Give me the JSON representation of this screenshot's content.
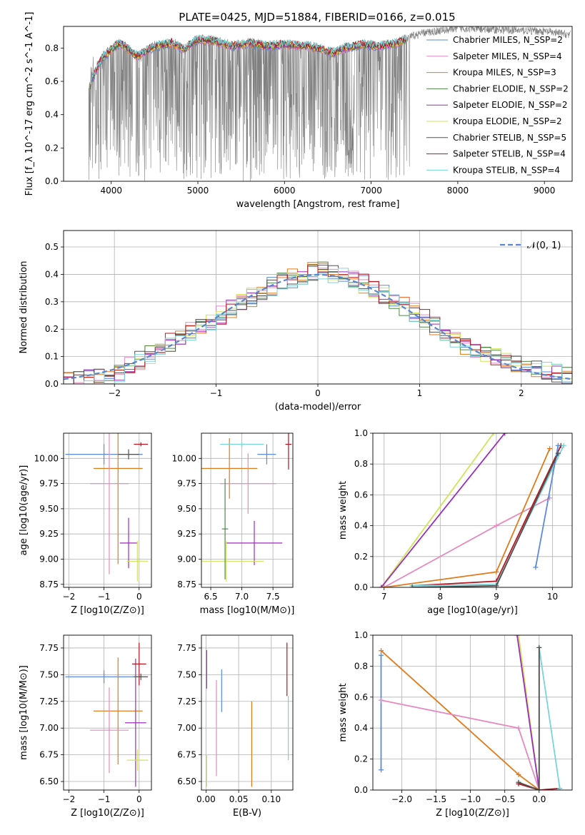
{
  "figure": {
    "title": "PLATE=0425, MJD=51884, FIBERID=0166, z=0.015"
  },
  "colors": {
    "grey": "#808080",
    "blue": "#5b8bd8",
    "pink": "#e689c0",
    "orange": "#e07b1a",
    "green": "#4f8a4a",
    "purple": "#9a2fb9",
    "yellow": "#cfe45a",
    "dark": "#505050",
    "red": "#b5161f",
    "cyan": "#78d4d8",
    "dash": "#5b86cf"
  },
  "chart_data": [
    {
      "id": "spectrum",
      "type": "line",
      "title": "PLATE=0425, MJD=51884, FIBERID=0166, z=0.015",
      "xlabel": "wavelength [Angstrom, rest frame]",
      "ylabel": "Flux [f_λ 10^-17 erg cm^-2 s^-1 A^-1]",
      "xlim": [
        3450,
        9320
      ],
      "ylim": [
        0,
        0.93
      ],
      "xticks": [
        4000,
        5000,
        6000,
        7000,
        8000,
        9000
      ],
      "yticks": [
        0.0,
        0.2,
        0.4,
        0.6,
        0.8
      ],
      "grid": false,
      "legend_position": "top-right",
      "legend": [
        "Chabrier MILES, N_SSP=2",
        "Salpeter MILES, N_SSP=4",
        "Kroupa MILES, N_SSP=3",
        "Chabrier ELODIE, N_SSP=2",
        "Salpeter ELODIE, N_SSP=2",
        "Kroupa ELODIE, N_SSP=2",
        "Chabrier STELIB, N_SSP=5",
        "Salpeter STELIB, N_SSP=4",
        "Kroupa STELIB, N_SSP=4"
      ],
      "data_range_x": [
        3740,
        9300
      ],
      "series": [
        {
          "name": "data",
          "x": [
            3740,
            3800,
            3900,
            4000,
            4100,
            4200,
            4300,
            4500,
            4700,
            4860,
            4900,
            5000,
            5200,
            5400,
            5600,
            5800,
            6000,
            6300,
            6563,
            6700,
            6900,
            7100,
            7300,
            7400,
            7600,
            8000,
            8500,
            9000,
            9300
          ],
          "y": [
            0.58,
            0.66,
            0.76,
            0.8,
            0.84,
            0.8,
            0.76,
            0.82,
            0.84,
            0.8,
            0.83,
            0.86,
            0.85,
            0.82,
            0.84,
            0.82,
            0.83,
            0.82,
            0.78,
            0.81,
            0.83,
            0.82,
            0.84,
            0.86,
            0.89,
            0.92,
            0.91,
            0.9,
            0.88
          ]
        },
        {
          "name": "models",
          "x": [
            3750,
            3800,
            3900,
            4000,
            4100,
            4200,
            4300,
            4500,
            4700,
            4860,
            4900,
            5000,
            5200,
            5400,
            5600,
            5800,
            6000,
            6300,
            6563,
            6700,
            6900,
            7100,
            7300,
            7400
          ],
          "y": [
            0.56,
            0.64,
            0.74,
            0.79,
            0.83,
            0.79,
            0.75,
            0.81,
            0.83,
            0.79,
            0.82,
            0.85,
            0.84,
            0.81,
            0.83,
            0.81,
            0.82,
            0.81,
            0.77,
            0.8,
            0.82,
            0.81,
            0.83,
            0.85
          ]
        }
      ]
    },
    {
      "id": "residuals",
      "type": "line",
      "xlabel": "(data-model)/error",
      "ylabel": "Normed distribution",
      "xlim": [
        -2.5,
        2.5
      ],
      "ylim": [
        0,
        0.56
      ],
      "xticks": [
        -2,
        -1,
        0,
        1,
        2
      ],
      "yticks": [
        0.0,
        0.1,
        0.2,
        0.3,
        0.4,
        0.5
      ],
      "grid": true,
      "legend_position": "top-right",
      "legend": [
        "𝒩(0, 1)"
      ],
      "bin_width": 0.1,
      "series": [
        {
          "name": "normal",
          "function": "gaussian",
          "mu": 0,
          "sigma": 1
        },
        {
          "name": "histogram_base",
          "x": [
            -2.5,
            -2.0,
            -1.5,
            -1.0,
            -0.5,
            0.0,
            0.5,
            1.0,
            1.5,
            2.0,
            2.5
          ],
          "y": [
            0.01,
            0.03,
            0.14,
            0.24,
            0.35,
            0.42,
            0.36,
            0.25,
            0.13,
            0.06,
            0.03
          ]
        }
      ]
    },
    {
      "id": "age_vs_Z",
      "type": "scatter",
      "xlabel": "Z [log10(Z/Z⊙)]",
      "ylabel": "age [log10(age/yr)]",
      "xlim": [
        -2.15,
        0.35
      ],
      "ylim": [
        8.72,
        10.25
      ],
      "xticks": [
        -2,
        -1,
        0
      ],
      "yticks": [
        8.75,
        9.0,
        9.25,
        9.5,
        9.75,
        10.0
      ],
      "grid": true,
      "points": [
        {
          "x": -1.0,
          "xerr": 1.1,
          "y": 10.04,
          "yerr": 0.1,
          "color": "blue"
        },
        {
          "x": -0.6,
          "xerr": 0.7,
          "y": 9.9,
          "yerr": 0.95,
          "color": "orange"
        },
        {
          "x": -0.85,
          "xerr": 0.55,
          "y": 9.75,
          "yerr": 0.9,
          "color": "pink"
        },
        {
          "x": -0.3,
          "xerr": 0.25,
          "y": 9.16,
          "yerr": 0.25,
          "color": "purple"
        },
        {
          "x": -0.05,
          "xerr": 0.3,
          "y": 8.98,
          "yerr": 0.2,
          "color": "yellow"
        },
        {
          "x": 0.05,
          "xerr": 0.2,
          "y": 10.14,
          "yerr": 0.02,
          "color": "red"
        },
        {
          "x": -0.3,
          "xerr": 0.3,
          "y": 10.04,
          "yerr": 0.05,
          "color": "dark"
        }
      ]
    },
    {
      "id": "age_vs_mass",
      "type": "scatter",
      "xlabel": "mass [log10(M/M⊙)]",
      "ylabel": "",
      "xlim": [
        6.35,
        7.82
      ],
      "ylim": [
        8.72,
        10.25
      ],
      "xticks": [
        6.5,
        7.0,
        7.5
      ],
      "yticks": [
        8.75,
        9.0,
        9.25,
        9.5,
        9.75,
        10.0
      ],
      "grid": true,
      "points": [
        {
          "x": 6.8,
          "xerr": 0.45,
          "y": 9.9,
          "yerr": 0.3,
          "color": "orange"
        },
        {
          "x": 7.1,
          "xerr": 0.45,
          "y": 9.75,
          "yerr": 0.3,
          "color": "pink"
        },
        {
          "x": 7.2,
          "xerr": 0.45,
          "y": 9.16,
          "yerr": 0.22,
          "color": "purple"
        },
        {
          "x": 7.4,
          "xerr": 0.15,
          "y": 10.04,
          "yerr": 0.1,
          "color": "blue"
        },
        {
          "x": 6.75,
          "xerr": 0.6,
          "y": 8.98,
          "yerr": 0.2,
          "color": "yellow"
        },
        {
          "x": 7.75,
          "xerr": 0.05,
          "y": 10.14,
          "yerr": 0.25,
          "color": "red"
        },
        {
          "x": 7.0,
          "xerr": 0.35,
          "y": 10.14,
          "yerr": 0.02,
          "color": "cyan"
        },
        {
          "x": 6.73,
          "xerr": 0.05,
          "y": 9.3,
          "yerr": 0.5,
          "color": "green"
        }
      ]
    },
    {
      "id": "massweight_vs_age",
      "type": "line",
      "xlabel": "age [log10(age/yr)]",
      "ylabel": "mass weight",
      "xlim": [
        6.8,
        10.35
      ],
      "ylim": [
        0,
        1.0
      ],
      "xticks": [
        7,
        8,
        9,
        10
      ],
      "yticks": [
        0.0,
        0.2,
        0.4,
        0.6,
        0.8,
        1.0
      ],
      "grid": true,
      "series": [
        {
          "color": "yellow",
          "x": [
            6.95,
            8.95
          ],
          "y": [
            0.0,
            1.0
          ]
        },
        {
          "color": "purple",
          "x": [
            6.95,
            9.15
          ],
          "y": [
            0.0,
            1.0
          ]
        },
        {
          "color": "pink",
          "x": [
            7.0,
            9.0,
            9.95
          ],
          "y": [
            0.0,
            0.4,
            0.58
          ]
        },
        {
          "color": "orange",
          "x": [
            7.0,
            9.0,
            9.95
          ],
          "y": [
            0.0,
            0.1,
            0.9
          ]
        },
        {
          "color": "red",
          "x": [
            7.5,
            9.0,
            10.15
          ],
          "y": [
            0.01,
            0.04,
            0.92
          ]
        },
        {
          "color": "cyan",
          "x": [
            7.5,
            9.0,
            10.2
          ],
          "y": [
            0.01,
            0.02,
            0.92
          ]
        },
        {
          "color": "blue",
          "x": [
            9.7,
            10.1
          ],
          "y": [
            0.13,
            0.92
          ]
        },
        {
          "color": "dark",
          "x": [
            7.5,
            9.0,
            10.1
          ],
          "y": [
            0.0,
            0.01,
            0.87
          ]
        }
      ]
    },
    {
      "id": "mass_vs_Z",
      "type": "scatter",
      "xlabel": "Z [log10(Z/Z⊙)]",
      "ylabel": "mass [log10(M/M⊙)]",
      "xlim": [
        -2.15,
        0.35
      ],
      "ylim": [
        6.42,
        7.87
      ],
      "xticks": [
        -2,
        -1,
        0
      ],
      "yticks": [
        6.5,
        6.75,
        7.0,
        7.25,
        7.5,
        7.75
      ],
      "grid": true,
      "points": [
        {
          "x": -1.0,
          "xerr": 1.1,
          "y": 7.48,
          "yerr": 0.06,
          "color": "blue"
        },
        {
          "x": -0.6,
          "xerr": 0.7,
          "y": 7.16,
          "yerr": 0.5,
          "color": "orange"
        },
        {
          "x": -0.85,
          "xerr": 0.55,
          "y": 6.98,
          "yerr": 0.4,
          "color": "pink"
        },
        {
          "x": -0.1,
          "xerr": 0.3,
          "y": 7.05,
          "yerr": 0.6,
          "color": "purple"
        },
        {
          "x": -0.05,
          "xerr": 0.3,
          "y": 6.7,
          "yerr": 0.1,
          "color": "yellow"
        },
        {
          "x": 0.0,
          "xerr": 0.2,
          "y": 7.6,
          "yerr": 0.2,
          "color": "red"
        },
        {
          "x": 0.05,
          "xerr": 0.2,
          "y": 7.48,
          "yerr": 0.03,
          "color": "dark"
        }
      ]
    },
    {
      "id": "mass_vs_EBV",
      "type": "scatter",
      "xlabel": "E(B-V)",
      "ylabel": "",
      "xlim": [
        -0.007,
        0.133
      ],
      "ylim": [
        6.42,
        7.87
      ],
      "xticks": [
        0.0,
        0.05,
        0.1
      ],
      "yticks": [
        6.5,
        6.75,
        7.0,
        7.25,
        7.5,
        7.75
      ],
      "grid": true,
      "points": [
        {
          "x": 0.001,
          "y": 7.55,
          "yerr": 0.18,
          "color": "purple"
        },
        {
          "x": 0.001,
          "y": 6.6,
          "yerr": 0.15,
          "color": "yellow"
        },
        {
          "x": 0.016,
          "y": 7.0,
          "yerr": 0.45,
          "color": "pink"
        },
        {
          "x": 0.024,
          "y": 7.35,
          "yerr": 0.2,
          "color": "blue"
        },
        {
          "x": 0.07,
          "y": 6.85,
          "yerr": 0.4,
          "color": "orange"
        },
        {
          "x": 0.124,
          "y": 7.55,
          "yerr": 0.25,
          "color": "red"
        },
        {
          "x": 0.126,
          "y": 7.0,
          "yerr": 0.3,
          "color": "cyan"
        }
      ]
    },
    {
      "id": "massweight_vs_Z",
      "type": "line",
      "xlabel": "Z [log10(Z/Z⊙)]",
      "ylabel": "mass weight",
      "xlim": [
        -2.42,
        0.48
      ],
      "ylim": [
        0,
        1.0
      ],
      "xticks": [
        -2.0,
        -1.5,
        -1.0,
        -0.5,
        0.0
      ],
      "yticks": [
        0.0,
        0.2,
        0.4,
        0.6,
        0.8,
        1.0
      ],
      "grid": true,
      "series": [
        {
          "color": "blue",
          "x": [
            -2.3,
            -2.3
          ],
          "y": [
            0.13,
            0.87
          ]
        },
        {
          "color": "orange",
          "x": [
            -2.3,
            -0.3,
            0.0
          ],
          "y": [
            0.9,
            0.1,
            0.0
          ]
        },
        {
          "color": "pink",
          "x": [
            -2.3,
            -0.3,
            0.0
          ],
          "y": [
            0.58,
            0.4,
            0.0
          ]
        },
        {
          "color": "yellow",
          "x": [
            -0.3,
            0.0
          ],
          "y": [
            1.0,
            0.0
          ]
        },
        {
          "color": "purple",
          "x": [
            -0.32,
            0.0
          ],
          "y": [
            1.0,
            0.0
          ]
        },
        {
          "color": "red",
          "x": [
            -0.3,
            0.0,
            0.3
          ],
          "y": [
            0.04,
            0.0,
            0.01
          ]
        },
        {
          "color": "cyan",
          "x": [
            0.0,
            0.0,
            0.3
          ],
          "y": [
            0.0,
            0.92,
            0.01
          ]
        },
        {
          "color": "dark",
          "x": [
            -0.3,
            0.0,
            0.0
          ],
          "y": [
            0.05,
            0.0,
            0.92
          ]
        }
      ]
    }
  ]
}
